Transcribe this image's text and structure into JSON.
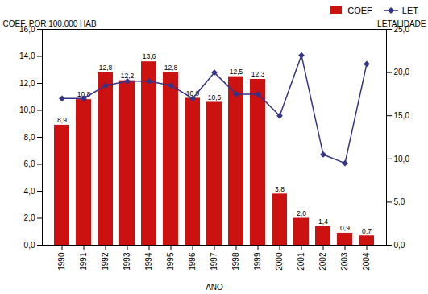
{
  "chart_data": {
    "type": "bar",
    "xlabel": "ANO",
    "ylabel": "COEF. POR 100.000 HAB",
    "y2label": "LETALIDADE",
    "categories": [
      "1990",
      "1991",
      "1992",
      "1993",
      "1994",
      "1995",
      "1996",
      "1997",
      "1998",
      "1999",
      "2000",
      "2001",
      "2002",
      "2003",
      "2004"
    ],
    "series": [
      {
        "name": "COEF",
        "type": "bar",
        "color": "#cc1111",
        "values": [
          8.9,
          10.8,
          12.8,
          12.2,
          13.6,
          12.8,
          10.9,
          10.6,
          12.5,
          12.3,
          3.8,
          2.0,
          1.4,
          0.9,
          0.7
        ],
        "value_labels": [
          "8,9",
          "10,8",
          "12,8",
          "12,2",
          "13,6",
          "12,8",
          "10,9",
          "10,6",
          "12,5",
          "12,3",
          "3,8",
          "2,0",
          "1,4",
          "0,9",
          "0,7"
        ]
      },
      {
        "name": "LET",
        "type": "line",
        "axis": "y2",
        "color": "#333388",
        "marker": "diamond",
        "values": [
          17.0,
          17.0,
          18.5,
          19.0,
          19.0,
          18.5,
          17.0,
          20.0,
          17.5,
          17.5,
          15.0,
          22.0,
          10.5,
          9.5,
          21.0
        ]
      }
    ],
    "ylim": [
      0,
      16.0
    ],
    "yticks": [
      {
        "value": 0.0,
        "label": "0,0"
      },
      {
        "value": 2.0,
        "label": "2,0"
      },
      {
        "value": 4.0,
        "label": "4,0"
      },
      {
        "value": 6.0,
        "label": "6,0"
      },
      {
        "value": 8.0,
        "label": "8,0"
      },
      {
        "value": 10.0,
        "label": "10,0"
      },
      {
        "value": 12.0,
        "label": "12,0"
      },
      {
        "value": 14.0,
        "label": "14,0"
      },
      {
        "value": 16.0,
        "label": "16,0"
      }
    ],
    "y2lim": [
      0,
      25.0
    ],
    "y2ticks": [
      {
        "value": 0.0,
        "label": "0,0"
      },
      {
        "value": 5.0,
        "label": "5,0"
      },
      {
        "value": 10.0,
        "label": "10,0"
      },
      {
        "value": 15.0,
        "label": "15,0"
      },
      {
        "value": 20.0,
        "label": "20,0"
      },
      {
        "value": 25.0,
        "label": "25,0"
      }
    ],
    "data_labels": true,
    "legend": "upper right",
    "grid": false
  }
}
